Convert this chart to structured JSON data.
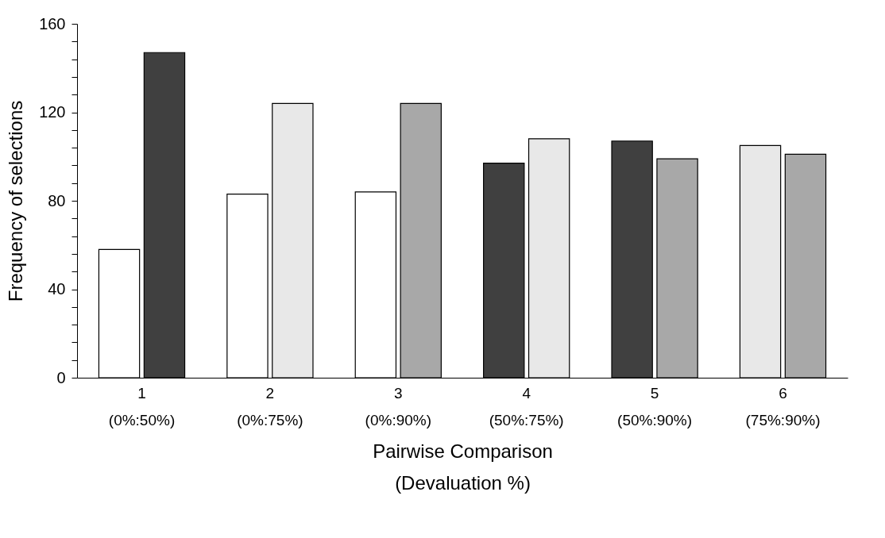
{
  "chart_data": {
    "type": "bar",
    "xlabel": "Pairwise Comparison\n(Devaluation %)",
    "ylabel": "Frequency of selections",
    "categories": [
      "1\n(0%:50%)",
      "2\n(0%:75%)",
      "3\n(0%:90%)",
      "4\n(50%:75%)",
      "5\n(50%:90%)",
      "6\n(75%:90%)"
    ],
    "series": [
      {
        "color": "#ffffff",
        "values": [
          58,
          83,
          84,
          null,
          null,
          null
        ]
      },
      {
        "color": "#404040",
        "values": [
          147,
          null,
          null,
          97,
          107,
          null
        ]
      },
      {
        "color": "#e8e8e8",
        "values": [
          null,
          124,
          null,
          108,
          null,
          105
        ]
      },
      {
        "color": "#a8a8a8",
        "values": [
          null,
          null,
          124,
          null,
          99,
          101
        ]
      }
    ],
    "ylim": [
      0,
      160
    ],
    "yticks": [
      0,
      {
        "value": 8,
        "label": null
      },
      {
        "value": 16,
        "label": null
      },
      {
        "value": 24,
        "label": null
      },
      {
        "value": 32,
        "label": null
      },
      40,
      {
        "value": 48,
        "label": null
      },
      {
        "value": 56,
        "label": null
      },
      {
        "value": 64,
        "label": null
      },
      {
        "value": 72,
        "label": null
      },
      80,
      {
        "value": 88,
        "label": null
      },
      {
        "value": 96,
        "label": null
      },
      {
        "value": 104,
        "label": null
      },
      {
        "value": 112,
        "label": null
      },
      120,
      {
        "value": 128,
        "label": null
      },
      {
        "value": 136,
        "label": null
      },
      {
        "value": 144,
        "label": null
      },
      {
        "value": 152,
        "label": null
      },
      160
    ],
    "grid": false,
    "legend": false
  }
}
